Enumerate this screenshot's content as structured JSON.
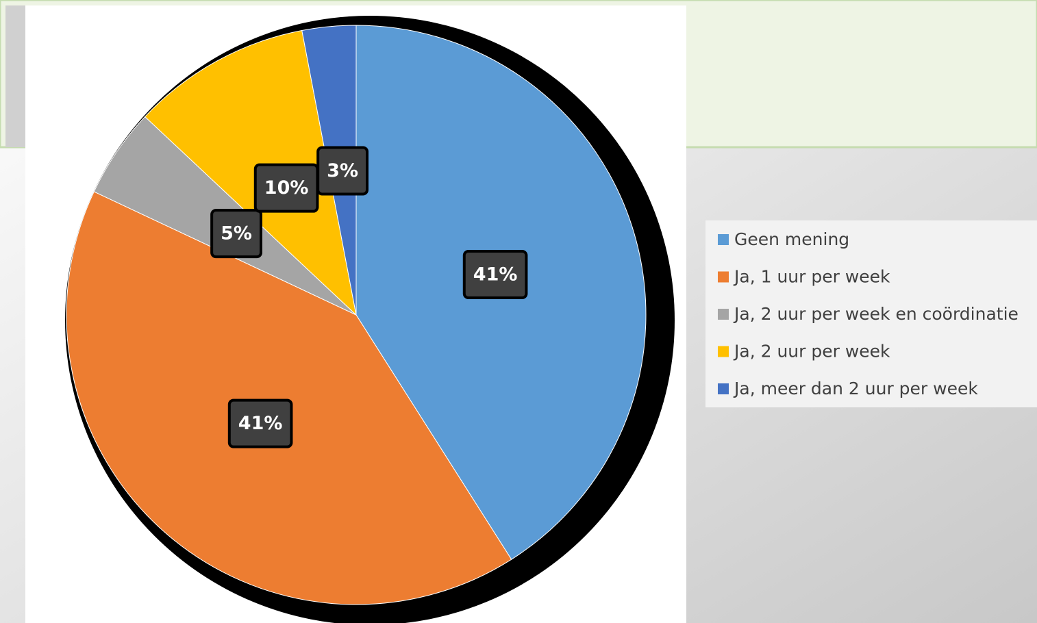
{
  "chart_data": {
    "type": "pie",
    "categories": [
      "Geen mening",
      "Ja, 1 uur per week",
      "Ja, 2 uur per week en coördinatie",
      "Ja, 2 uur per week",
      "Ja, meer dan 2 uur per week"
    ],
    "values": [
      41,
      41,
      5,
      10,
      3
    ],
    "value_labels": [
      "41%",
      "41%",
      "5%",
      "10%",
      "3%"
    ],
    "colors": [
      "#5b9bd5",
      "#ed7d31",
      "#a5a5a5",
      "#ffc000",
      "#4472c4"
    ],
    "legend": "right"
  }
}
